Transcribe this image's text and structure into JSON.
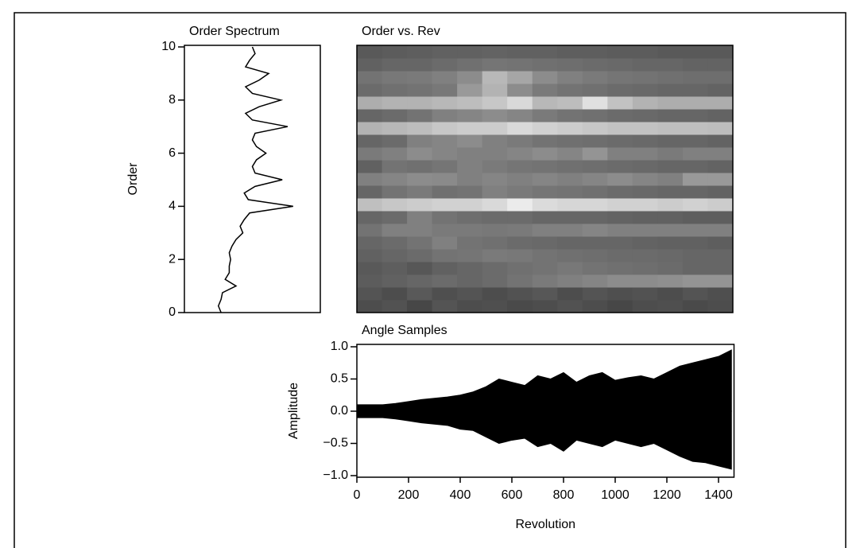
{
  "chart_data": [
    {
      "type": "line",
      "orientation": "vertical",
      "title": "Order Spectrum",
      "ylabel": "Order",
      "y": [
        0,
        0.25,
        0.5,
        0.75,
        1,
        1.25,
        1.5,
        1.75,
        2,
        2.25,
        2.5,
        2.75,
        3,
        3.25,
        3.5,
        3.75,
        4,
        4.25,
        4.5,
        4.75,
        5,
        5.25,
        5.5,
        5.75,
        6,
        6.25,
        6.5,
        6.75,
        7,
        7.25,
        7.5,
        7.75,
        8,
        8.25,
        8.5,
        8.75,
        9,
        9.25,
        9.5,
        9.75,
        10
      ],
      "series": [
        {
          "color": "#000000",
          "values": [
            0.27,
            0.25,
            0.27,
            0.28,
            0.38,
            0.3,
            0.33,
            0.33,
            0.34,
            0.33,
            0.35,
            0.38,
            0.43,
            0.41,
            0.44,
            0.48,
            0.8,
            0.47,
            0.44,
            0.52,
            0.72,
            0.52,
            0.5,
            0.53,
            0.6,
            0.53,
            0.5,
            0.52,
            0.76,
            0.5,
            0.45,
            0.55,
            0.71,
            0.5,
            0.45,
            0.55,
            0.62,
            0.45,
            0.48,
            0.52,
            0.5
          ]
        }
      ],
      "xlim": [
        0,
        1
      ],
      "ylim": [
        0,
        10
      ],
      "yticks": [
        0,
        2,
        4,
        6,
        8,
        10
      ]
    },
    {
      "type": "heatmap",
      "title": "Order vs. Rev",
      "xlim": [
        0,
        1460
      ],
      "ylim": [
        0,
        10
      ],
      "values": [
        [
          0.3,
          0.32,
          0.28,
          0.33,
          0.3,
          0.31,
          0.29,
          0.3,
          0.32,
          0.3,
          0.28,
          0.3,
          0.31,
          0.29,
          0.3
        ],
        [
          0.33,
          0.3,
          0.35,
          0.31,
          0.33,
          0.3,
          0.32,
          0.34,
          0.3,
          0.33,
          0.31,
          0.32,
          0.3,
          0.33,
          0.31
        ],
        [
          0.36,
          0.38,
          0.4,
          0.42,
          0.4,
          0.42,
          0.45,
          0.48,
          0.5,
          0.52,
          0.55,
          0.55,
          0.56,
          0.58,
          0.58
        ],
        [
          0.35,
          0.37,
          0.34,
          0.38,
          0.4,
          0.42,
          0.44,
          0.45,
          0.47,
          0.45,
          0.44,
          0.43,
          0.42,
          0.4,
          0.4
        ],
        [
          0.38,
          0.4,
          0.42,
          0.45,
          0.46,
          0.48,
          0.47,
          0.45,
          0.44,
          0.43,
          0.42,
          0.42,
          0.41,
          0.4,
          0.4
        ],
        [
          0.4,
          0.42,
          0.45,
          0.5,
          0.45,
          0.44,
          0.42,
          0.41,
          0.4,
          0.4,
          0.4,
          0.39,
          0.38,
          0.38,
          0.37
        ],
        [
          0.45,
          0.5,
          0.5,
          0.48,
          0.48,
          0.47,
          0.48,
          0.5,
          0.5,
          0.52,
          0.5,
          0.5,
          0.5,
          0.5,
          0.5
        ],
        [
          0.4,
          0.42,
          0.5,
          0.45,
          0.43,
          0.42,
          0.42,
          0.4,
          0.4,
          0.4,
          0.39,
          0.38,
          0.38,
          0.37,
          0.37
        ],
        [
          0.75,
          0.78,
          0.8,
          0.82,
          0.82,
          0.85,
          0.92,
          0.86,
          0.84,
          0.84,
          0.82,
          0.82,
          0.8,
          0.82,
          0.8
        ],
        [
          0.4,
          0.45,
          0.48,
          0.44,
          0.45,
          0.5,
          0.48,
          0.46,
          0.45,
          0.44,
          0.42,
          0.41,
          0.4,
          0.4,
          0.39
        ],
        [
          0.5,
          0.52,
          0.55,
          0.54,
          0.5,
          0.52,
          0.5,
          0.52,
          0.5,
          0.52,
          0.55,
          0.52,
          0.5,
          0.6,
          0.6
        ],
        [
          0.38,
          0.45,
          0.44,
          0.46,
          0.5,
          0.48,
          0.46,
          0.45,
          0.44,
          0.43,
          0.42,
          0.41,
          0.4,
          0.4,
          0.39
        ],
        [
          0.48,
          0.5,
          0.55,
          0.52,
          0.5,
          0.5,
          0.52,
          0.55,
          0.52,
          0.58,
          0.5,
          0.5,
          0.48,
          0.5,
          0.5
        ],
        [
          0.4,
          0.42,
          0.5,
          0.52,
          0.55,
          0.5,
          0.48,
          0.45,
          0.44,
          0.43,
          0.42,
          0.41,
          0.4,
          0.4,
          0.39
        ],
        [
          0.7,
          0.72,
          0.74,
          0.78,
          0.8,
          0.8,
          0.85,
          0.82,
          0.8,
          0.78,
          0.76,
          0.76,
          0.75,
          0.75,
          0.74
        ],
        [
          0.4,
          0.42,
          0.45,
          0.5,
          0.52,
          0.55,
          0.52,
          0.48,
          0.45,
          0.44,
          0.42,
          0.41,
          0.4,
          0.4,
          0.39
        ],
        [
          0.68,
          0.7,
          0.7,
          0.72,
          0.74,
          0.78,
          0.85,
          0.72,
          0.74,
          0.88,
          0.76,
          0.7,
          0.68,
          0.68,
          0.68
        ],
        [
          0.42,
          0.44,
          0.45,
          0.47,
          0.6,
          0.7,
          0.55,
          0.48,
          0.45,
          0.44,
          0.42,
          0.41,
          0.4,
          0.4,
          0.39
        ],
        [
          0.45,
          0.47,
          0.48,
          0.5,
          0.55,
          0.72,
          0.65,
          0.55,
          0.5,
          0.48,
          0.46,
          0.45,
          0.44,
          0.43,
          0.43
        ],
        [
          0.38,
          0.4,
          0.4,
          0.42,
          0.44,
          0.46,
          0.45,
          0.44,
          0.43,
          0.42,
          0.41,
          0.4,
          0.4,
          0.39,
          0.39
        ],
        [
          0.35,
          0.36,
          0.37,
          0.38,
          0.38,
          0.39,
          0.38,
          0.38,
          0.37,
          0.37,
          0.36,
          0.36,
          0.35,
          0.35,
          0.35
        ]
      ]
    },
    {
      "type": "area",
      "title": "Angle Samples",
      "xlabel": "Revolution",
      "ylabel": "Amplitude",
      "x": [
        0,
        50,
        100,
        150,
        200,
        250,
        300,
        350,
        400,
        450,
        500,
        550,
        600,
        650,
        700,
        750,
        800,
        850,
        900,
        950,
        1000,
        1050,
        1100,
        1150,
        1200,
        1250,
        1300,
        1350,
        1400,
        1450
      ],
      "series": [
        {
          "color": "#000000",
          "values": [
            0.1,
            0.1,
            0.1,
            0.12,
            0.15,
            0.18,
            0.2,
            0.22,
            0.25,
            0.3,
            0.38,
            0.5,
            0.45,
            0.4,
            0.55,
            0.5,
            0.6,
            0.45,
            0.55,
            0.6,
            0.48,
            0.52,
            0.55,
            0.5,
            0.6,
            0.7,
            0.75,
            0.8,
            0.85,
            0.95
          ]
        },
        {
          "color": "#000000",
          "values": [
            -0.1,
            -0.1,
            -0.1,
            -0.12,
            -0.15,
            -0.18,
            -0.2,
            -0.22,
            -0.28,
            -0.3,
            -0.4,
            -0.5,
            -0.45,
            -0.42,
            -0.55,
            -0.5,
            -0.62,
            -0.45,
            -0.5,
            -0.55,
            -0.45,
            -0.5,
            -0.55,
            -0.5,
            -0.6,
            -0.7,
            -0.78,
            -0.8,
            -0.85,
            -0.9
          ]
        }
      ],
      "xlim": [
        0,
        1460
      ],
      "ylim": [
        -1,
        1
      ],
      "xticks": [
        0,
        200,
        400,
        600,
        800,
        1000,
        1200,
        1400
      ],
      "yticks": [
        {
          "value": 1,
          "label": "1.0"
        },
        {
          "value": 0.5,
          "label": "0.5"
        },
        {
          "value": 0,
          "label": "0.0"
        },
        {
          "value": -0.5,
          "label": "−0.5"
        },
        {
          "value": -1,
          "label": "−1.0"
        }
      ]
    }
  ]
}
